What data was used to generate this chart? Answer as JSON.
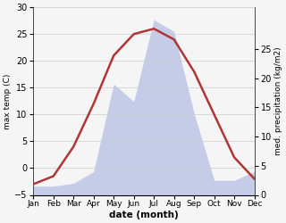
{
  "months": [
    "Jan",
    "Feb",
    "Mar",
    "Apr",
    "May",
    "Jun",
    "Jul",
    "Aug",
    "Sep",
    "Oct",
    "Nov",
    "Dec"
  ],
  "temperature": [
    -3,
    -1.5,
    4,
    12,
    21,
    25,
    26,
    24,
    18,
    10,
    2,
    -2
  ],
  "precipitation": [
    1.5,
    1.5,
    2.0,
    4.0,
    19.0,
    16.0,
    30.0,
    28.0,
    14.0,
    2.5,
    2.5,
    4.0
  ],
  "temp_color": "#b03535",
  "precip_fill_color": "#c5cce8",
  "xlabel": "date (month)",
  "ylabel_left": "max temp (C)",
  "ylabel_right": "med. precipitation (kg/m2)",
  "temp_ylim": [
    -5,
    30
  ],
  "precip_ylim": [
    0,
    32.14
  ],
  "right_yticks": [
    0,
    5,
    10,
    15,
    20,
    25
  ],
  "left_yticks": [
    -5,
    0,
    5,
    10,
    15,
    20,
    25,
    30
  ],
  "figsize": [
    3.2,
    2.5
  ],
  "dpi": 100,
  "background_color": "#f5f5f5"
}
